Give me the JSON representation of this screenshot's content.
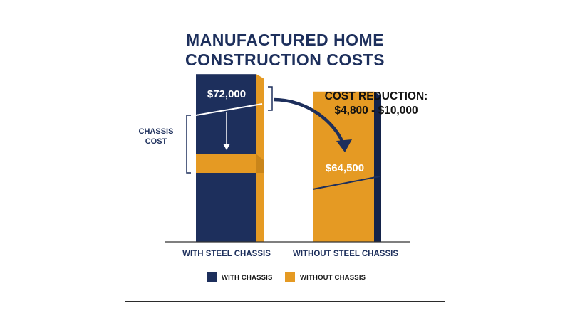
{
  "title": {
    "line1": "MANUFACTURED HOME",
    "line2": "CONSTRUCTION COSTS"
  },
  "colors": {
    "navy": "#1d2f5c",
    "gold": "#e59a23",
    "gold_dark": "#c9851a",
    "navy_dark": "#14234a"
  },
  "annotations": {
    "chassis_cost_line1": "CHASSIS",
    "chassis_cost_line2": "COST",
    "cost_reduction_line1": "COST REDUCTION:",
    "cost_reduction_line2": "$4,800 - $10,000"
  },
  "legend": {
    "with_chassis": "WITH CHASSIS",
    "without_chassis": "WITHOUT CHASSIS"
  },
  "chart_data": {
    "type": "bar",
    "categories": [
      "WITH STEEL CHASSIS",
      "WITHOUT STEEL CHASSIS"
    ],
    "values": [
      72000,
      64500
    ],
    "data_labels": [
      "$72,000",
      "$64,500"
    ],
    "series": [
      {
        "name": "WITH CHASSIS",
        "color": "#1d2f5c"
      },
      {
        "name": "WITHOUT CHASSIS",
        "color": "#e59a23"
      }
    ],
    "ymin": 0,
    "ymax": 80000,
    "grid": false,
    "legend_position": "bottom"
  }
}
